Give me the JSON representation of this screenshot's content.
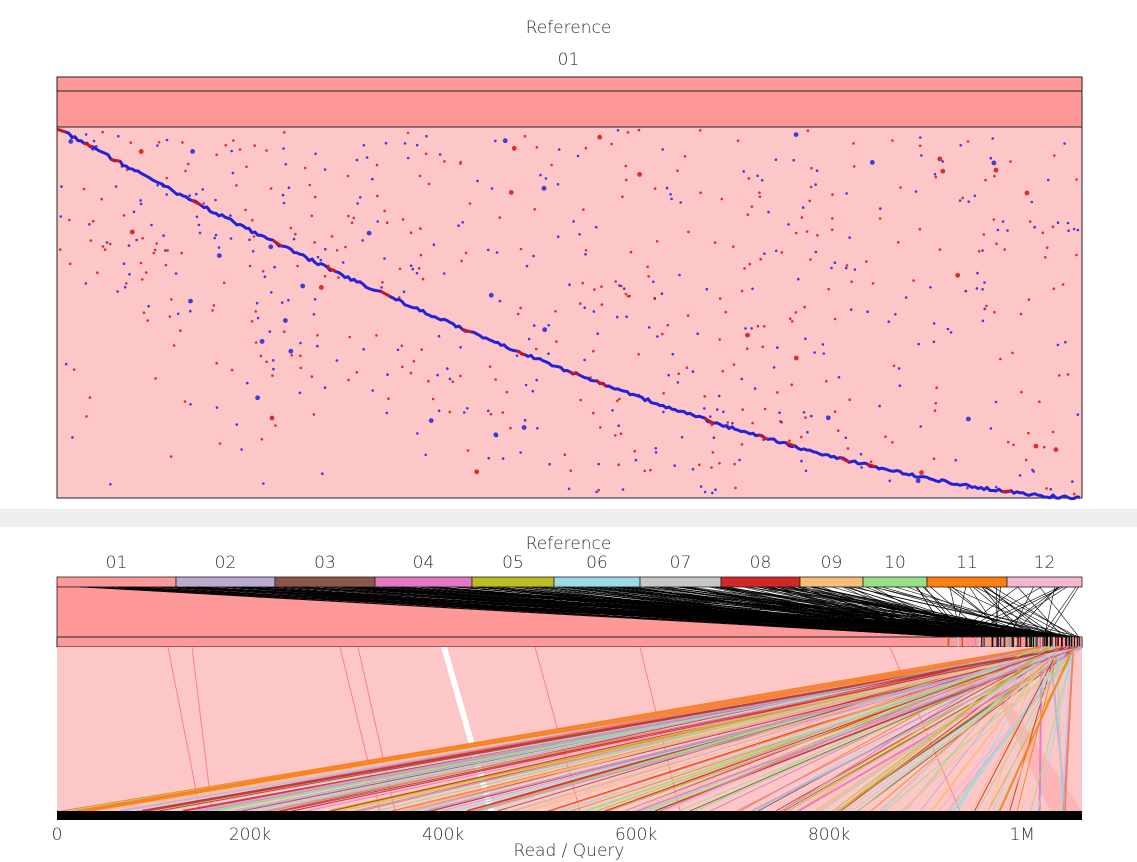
{
  "dotplot": {
    "title": "Reference",
    "chrom_label": "01",
    "colors": {
      "background": "#fdc7c7",
      "band": "#ff9999",
      "forward": "#2222dd",
      "reverse": "#dd1111"
    }
  },
  "overview": {
    "title": "Reference",
    "chromosomes": [
      {
        "label": "01",
        "color": "#ff9999"
      },
      {
        "label": "02",
        "color": "#bcabcf"
      },
      {
        "label": "03",
        "color": "#8c564b"
      },
      {
        "label": "04",
        "color": "#e377c2"
      },
      {
        "label": "05",
        "color": "#bcbd22"
      },
      {
        "label": "06",
        "color": "#9edae5"
      },
      {
        "label": "07",
        "color": "#c7c7c7"
      },
      {
        "label": "08",
        "color": "#d62728"
      },
      {
        "label": "09",
        "color": "#ffbb78"
      },
      {
        "label": "10",
        "color": "#98df8a"
      },
      {
        "label": "11",
        "color": "#ff7f0e"
      },
      {
        "label": "12",
        "color": "#f7b6d2"
      }
    ],
    "query_axis": {
      "label": "Read / Query",
      "ticks": [
        "0",
        "200k",
        "400k",
        "600k",
        "800k",
        "1M"
      ],
      "tick_values": [
        0,
        200000,
        400000,
        600000,
        800000,
        1000000
      ],
      "max": 1062000
    }
  }
}
